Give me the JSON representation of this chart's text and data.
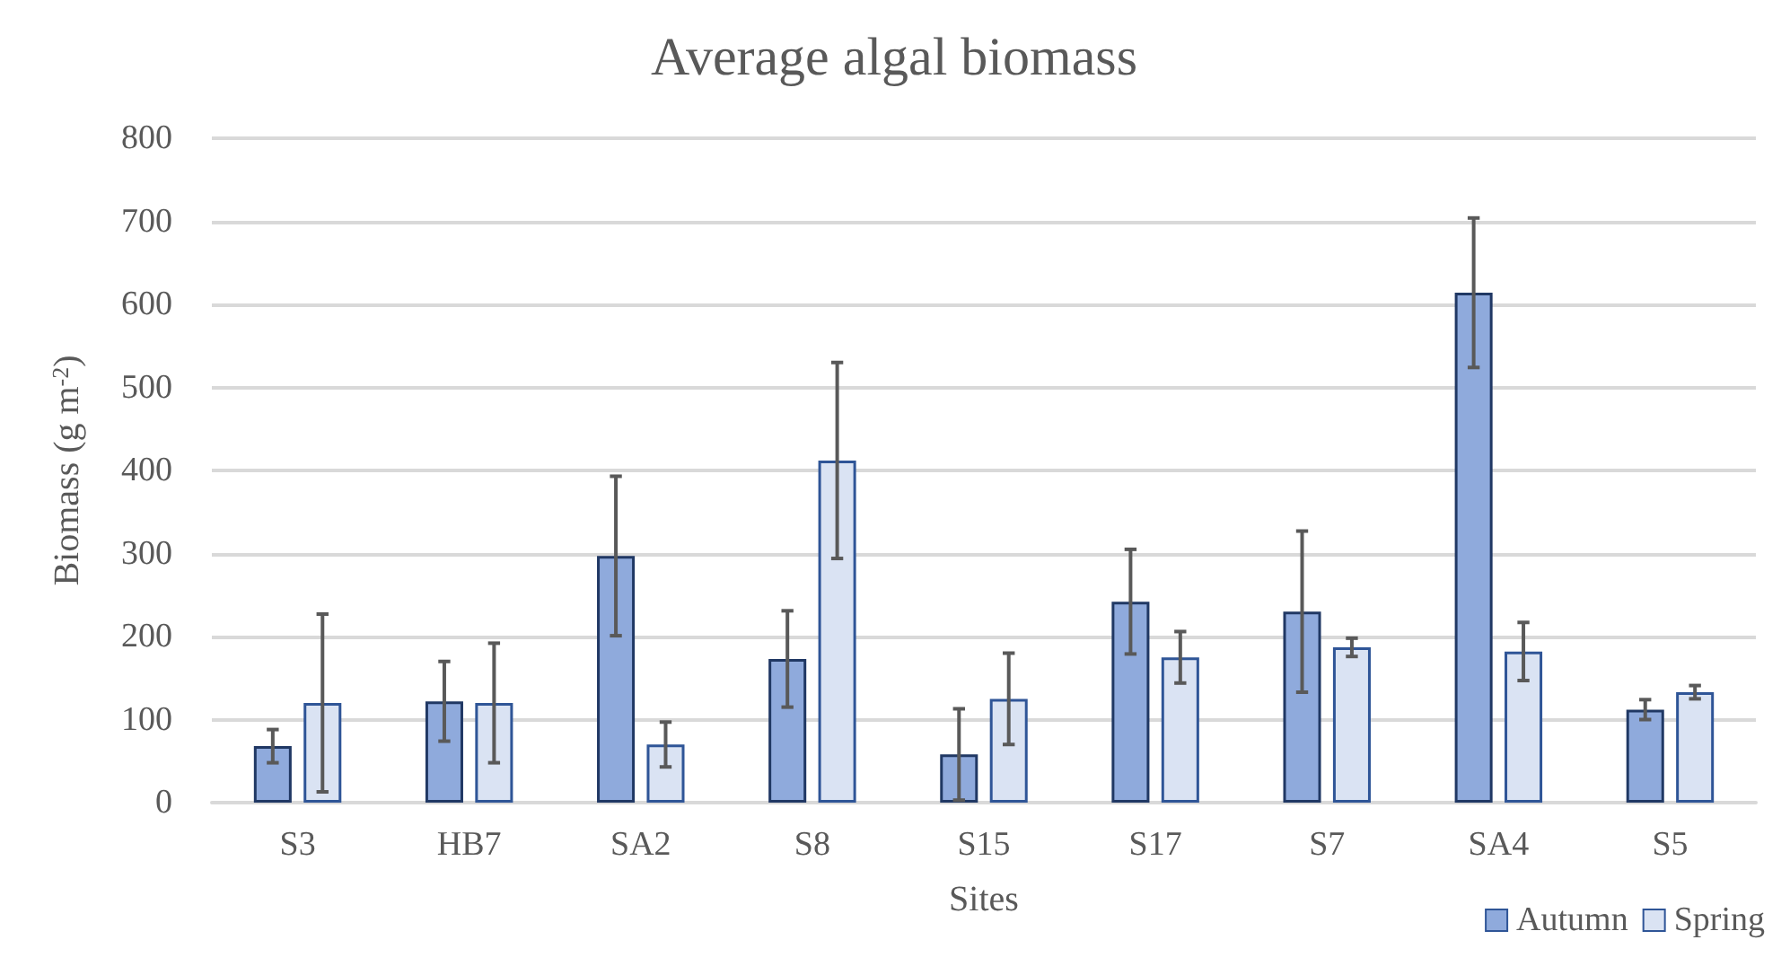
{
  "chart_data": {
    "type": "bar",
    "title": "Average algal biomass",
    "xlabel": "Sites",
    "ylabel": "Biomass (g m$^{-2}$)",
    "categories": [
      "S3",
      "HB7",
      "SA2",
      "S8",
      "S15",
      "S17",
      "S7",
      "SA4",
      "S5"
    ],
    "series": [
      {
        "name": "Autumn",
        "color": "#8faadc",
        "values": [
          68,
          122,
          297,
          173,
          58,
          242,
          230,
          614,
          112
        ],
        "errors": [
          20,
          48,
          96,
          58,
          55,
          63,
          97,
          90,
          12
        ]
      },
      {
        "name": "Spring",
        "color": "#dae3f3",
        "values": [
          120,
          120,
          70,
          412,
          125,
          175,
          187,
          182,
          133
        ],
        "errors": [
          107,
          72,
          27,
          118,
          55,
          31,
          11,
          35,
          8
        ]
      }
    ],
    "ylim": [
      0,
      800
    ],
    "yticks": [
      0,
      100,
      200,
      300,
      400,
      500,
      600,
      700,
      800
    ],
    "grid": "y",
    "legend": "bottom right"
  }
}
